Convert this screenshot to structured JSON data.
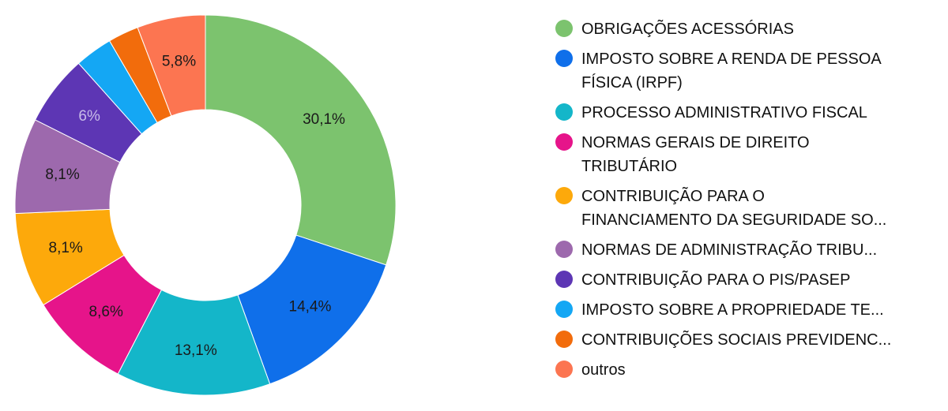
{
  "chart_data": {
    "type": "pie",
    "donut": true,
    "legend_position": "right",
    "slices": [
      {
        "label": "OBRIGAÇÕES ACESSÓRIAS",
        "value": 30.1,
        "value_label": "30,1%",
        "color": "#7cc36e",
        "label_color": "#1a1a1a"
      },
      {
        "label": "IMPOSTO SOBRE A RENDA DE PESSOA\nFÍSICA (IRPF)",
        "value": 14.4,
        "value_label": "14,4%",
        "color": "#0f6fea",
        "label_color": "#1a1a1a"
      },
      {
        "label": "PROCESSO ADMINISTRATIVO FISCAL",
        "value": 13.1,
        "value_label": "13,1%",
        "color": "#14b6c9",
        "label_color": "#1a1a1a"
      },
      {
        "label": "NORMAS GERAIS DE DIREITO\nTRIBUTÁRIO",
        "value": 8.6,
        "value_label": "8,6%",
        "color": "#e6148a",
        "label_color": "#1a1a1a"
      },
      {
        "label": "CONTRIBUIÇÃO PARA O\nFINANCIAMENTO DA SEGURIDADE SO...",
        "value": 8.1,
        "value_label": "8,1%",
        "color": "#fda90b",
        "label_color": "#1a1a1a"
      },
      {
        "label": "NORMAS DE ADMINISTRAÇÃO TRIBU...",
        "value": 8.1,
        "value_label": "8,1%",
        "color": "#9d69ad",
        "label_color": "#1a1a1a"
      },
      {
        "label": "CONTRIBUIÇÃO PARA O PIS/PASEP",
        "value": 6.0,
        "value_label": "6%",
        "color": "#5d36b4",
        "label_color": "#c8bce8"
      },
      {
        "label": "IMPOSTO SOBRE A PROPRIEDADE TE...",
        "value": 3.2,
        "value_label": "",
        "color": "#14a7f4",
        "label_color": "#1a1a1a"
      },
      {
        "label": "CONTRIBUIÇÕES SOCIAIS PREVIDENC...",
        "value": 2.6,
        "value_label": "",
        "color": "#f26c0c",
        "label_color": "#1a1a1a"
      },
      {
        "label": "outros",
        "value": 5.8,
        "value_label": "5,8%",
        "color": "#fc7551",
        "label_color": "#1a1a1a"
      }
    ]
  }
}
